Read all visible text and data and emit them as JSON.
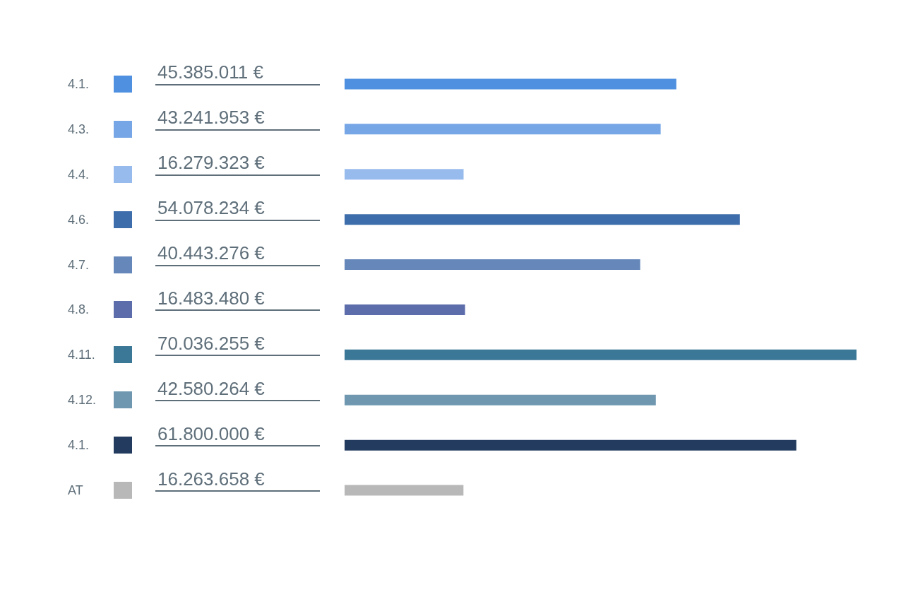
{
  "chart_data": {
    "type": "bar",
    "orientation": "horizontal",
    "categories": [
      "4.1.",
      "4.3.",
      "4.4.",
      "4.6.",
      "4.7.",
      "4.8.",
      "4.11.",
      "4.12.",
      "4.1.",
      "AT"
    ],
    "values": [
      45385011,
      43241953,
      16279323,
      54078234,
      40443276,
      16483480,
      70036255,
      42580264,
      61800000,
      16263658
    ],
    "value_labels": [
      "45.385.011 €",
      "43.241.953 €",
      "16.279.323 €",
      "54.078.234 €",
      "40.443.276 €",
      "16.483.480 €",
      "70.036.255 €",
      "42.580.264 €",
      "61.800.000 €",
      "16.263.658 €"
    ],
    "colors": [
      "#5090e0",
      "#76a6e6",
      "#98bbee",
      "#3d6eab",
      "#6587ba",
      "#5d6cab",
      "#3b7796",
      "#6f98b0",
      "#233b5e",
      "#b8b8b8"
    ]
  }
}
